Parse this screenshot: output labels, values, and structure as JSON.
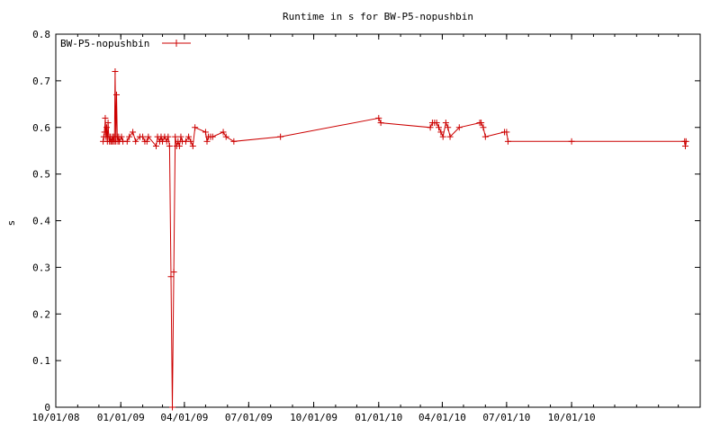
{
  "chart_data": {
    "type": "line",
    "title": "Runtime in s for BW-P5-nopushbin",
    "xlabel": "",
    "ylabel": "s",
    "ylim": [
      0,
      0.8
    ],
    "xlim": [
      "2008-10-01",
      "2011-04-01"
    ],
    "yticks": [
      0,
      0.1,
      0.2,
      0.3,
      0.4,
      0.5,
      0.6,
      0.7,
      0.8
    ],
    "ytick_labels": [
      "0",
      "0.1",
      "0.2",
      "0.3",
      "0.4",
      "0.5",
      "0.6",
      "0.7",
      "0.8"
    ],
    "xticks": [
      "2008-10-01",
      "2009-01-01",
      "2009-04-01",
      "2009-07-01",
      "2009-10-01",
      "2010-01-01",
      "2010-04-01",
      "2010-07-01",
      "2010-10-01"
    ],
    "xtick_labels": [
      "10/01/08",
      "01/01/09",
      "04/01/09",
      "07/01/09",
      "10/01/09",
      "01/01/10",
      "04/01/10",
      "07/01/10",
      "10/01/10"
    ],
    "legend_position": "top-left",
    "grid": false,
    "series": [
      {
        "name": "BW-P5-nopushbin",
        "color": "#cc0000",
        "marker": "plus",
        "points": [
          [
            "2008-12-07",
            0.57
          ],
          [
            "2008-12-08",
            0.58
          ],
          [
            "2008-12-09",
            0.59
          ],
          [
            "2008-12-10",
            0.62
          ],
          [
            "2008-12-11",
            0.58
          ],
          [
            "2008-12-12",
            0.6
          ],
          [
            "2008-12-13",
            0.57
          ],
          [
            "2008-12-14",
            0.61
          ],
          [
            "2008-12-15",
            0.58
          ],
          [
            "2008-12-16",
            0.57
          ],
          [
            "2008-12-17",
            0.58
          ],
          [
            "2008-12-18",
            0.57
          ],
          [
            "2008-12-19",
            0.57
          ],
          [
            "2008-12-20",
            0.58
          ],
          [
            "2008-12-21",
            0.57
          ],
          [
            "2008-12-22",
            0.58
          ],
          [
            "2008-12-23",
            0.57
          ],
          [
            "2008-12-24",
            0.72
          ],
          [
            "2008-12-25",
            0.57
          ],
          [
            "2008-12-26",
            0.67
          ],
          [
            "2008-12-27",
            0.58
          ],
          [
            "2008-12-28",
            0.57
          ],
          [
            "2008-12-29",
            0.58
          ],
          [
            "2008-12-30",
            0.57
          ],
          [
            "2009-01-02",
            0.58
          ],
          [
            "2009-01-04",
            0.57
          ],
          [
            "2009-01-10",
            0.57
          ],
          [
            "2009-01-13",
            0.58
          ],
          [
            "2009-01-18",
            0.59
          ],
          [
            "2009-01-22",
            0.57
          ],
          [
            "2009-01-28",
            0.58
          ],
          [
            "2009-02-01",
            0.58
          ],
          [
            "2009-02-04",
            0.57
          ],
          [
            "2009-02-07",
            0.57
          ],
          [
            "2009-02-09",
            0.58
          ],
          [
            "2009-02-20",
            0.56
          ],
          [
            "2009-02-22",
            0.58
          ],
          [
            "2009-02-25",
            0.57
          ],
          [
            "2009-02-27",
            0.58
          ],
          [
            "2009-03-01",
            0.57
          ],
          [
            "2009-03-04",
            0.58
          ],
          [
            "2009-03-07",
            0.57
          ],
          [
            "2009-03-09",
            0.58
          ],
          [
            "2009-03-11",
            0.56
          ],
          [
            "2009-03-13",
            0.28
          ],
          [
            "2009-03-15",
            0.0
          ],
          [
            "2009-03-17",
            0.29
          ],
          [
            "2009-03-19",
            0.58
          ],
          [
            "2009-03-21",
            0.56
          ],
          [
            "2009-03-23",
            0.57
          ],
          [
            "2009-03-25",
            0.56
          ],
          [
            "2009-03-27",
            0.58
          ],
          [
            "2009-03-29",
            0.57
          ],
          [
            "2009-04-03",
            0.57
          ],
          [
            "2009-04-07",
            0.58
          ],
          [
            "2009-04-10",
            0.57
          ],
          [
            "2009-04-13",
            0.56
          ],
          [
            "2009-04-16",
            0.6
          ],
          [
            "2009-05-01",
            0.59
          ],
          [
            "2009-05-03",
            0.57
          ],
          [
            "2009-05-05",
            0.58
          ],
          [
            "2009-05-08",
            0.58
          ],
          [
            "2009-05-11",
            0.58
          ],
          [
            "2009-05-26",
            0.59
          ],
          [
            "2009-05-30",
            0.58
          ],
          [
            "2009-06-10",
            0.57
          ],
          [
            "2009-08-15",
            0.58
          ],
          [
            "2010-01-01",
            0.62
          ],
          [
            "2010-01-04",
            0.61
          ],
          [
            "2010-03-15",
            0.6
          ],
          [
            "2010-03-18",
            0.61
          ],
          [
            "2010-03-21",
            0.61
          ],
          [
            "2010-03-24",
            0.61
          ],
          [
            "2010-03-27",
            0.6
          ],
          [
            "2010-03-30",
            0.59
          ],
          [
            "2010-04-02",
            0.58
          ],
          [
            "2010-04-06",
            0.61
          ],
          [
            "2010-04-09",
            0.6
          ],
          [
            "2010-04-12",
            0.58
          ],
          [
            "2010-04-25",
            0.6
          ],
          [
            "2010-05-24",
            0.61
          ],
          [
            "2010-05-26",
            0.61
          ],
          [
            "2010-05-29",
            0.6
          ],
          [
            "2010-06-01",
            0.58
          ],
          [
            "2010-06-28",
            0.59
          ],
          [
            "2010-07-01",
            0.59
          ],
          [
            "2010-07-03",
            0.57
          ],
          [
            "2010-10-01",
            0.57
          ],
          [
            "2011-03-10",
            0.57
          ],
          [
            "2011-03-11",
            0.56
          ],
          [
            "2011-03-12",
            0.57
          ]
        ]
      }
    ]
  }
}
